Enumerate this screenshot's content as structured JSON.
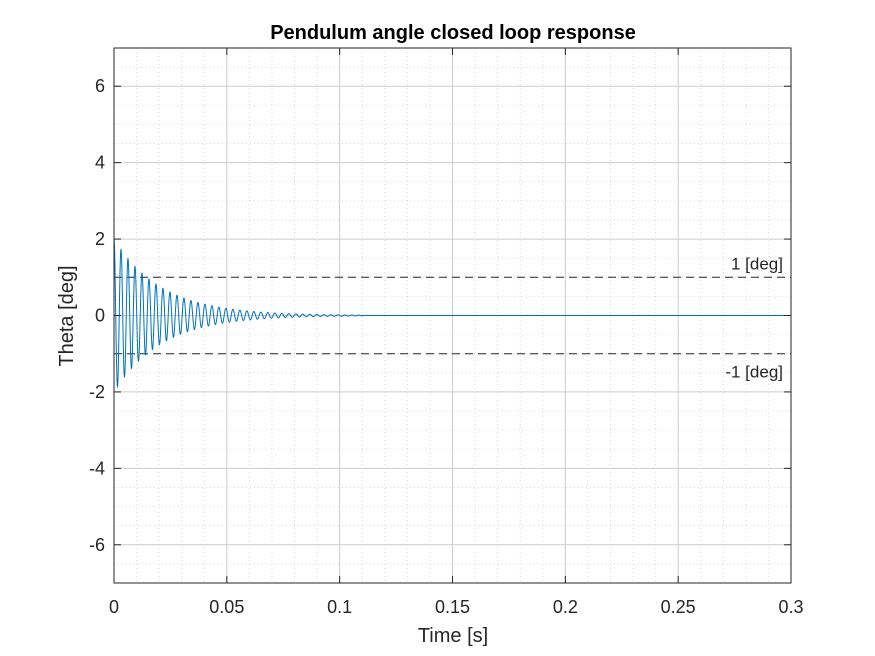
{
  "chart_data": {
    "type": "line",
    "title": "Pendulum angle closed loop response",
    "xlabel": "Time [s]",
    "ylabel": "Theta [deg]",
    "xlim": [
      0,
      0.3
    ],
    "ylim": [
      -7,
      7
    ],
    "xticks": [
      0,
      0.05,
      0.1,
      0.15,
      0.2,
      0.25,
      0.3
    ],
    "xtick_labels": [
      "0",
      "0.05",
      "0.1",
      "0.15",
      "0.2",
      "0.25",
      "0.3"
    ],
    "yticks": [
      -6,
      -4,
      -2,
      0,
      2,
      4,
      6
    ],
    "ytick_labels": [
      "-6",
      "-4",
      "-2",
      "0",
      "2",
      "4",
      "6"
    ],
    "grid": true,
    "minor_grid": true,
    "series": [
      {
        "color": "#0072bd",
        "model": "damped_oscillation",
        "initial_value": 2,
        "peak_values": [
          1.65,
          -1.8,
          1.4,
          -1.5
        ],
        "period": 0.0031,
        "decay_time_constant": 0.021,
        "settled_by": 0.11,
        "final_value": 0
      }
    ],
    "reference_lines": [
      {
        "y": 1,
        "label": "1 [deg]",
        "style": "dashed",
        "color": "#262626"
      },
      {
        "y": -1,
        "label": "-1 [deg]",
        "style": "dashed",
        "color": "#262626"
      }
    ]
  }
}
